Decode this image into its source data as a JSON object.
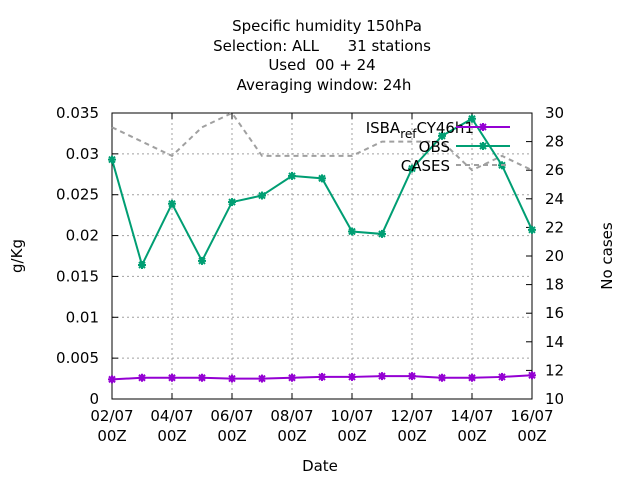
{
  "chart_data": {
    "type": "line",
    "title_lines": [
      "Specific humidity 150hPa",
      "Selection: ALL      31 stations",
      "Used  00 + 24",
      "Averaging window: 24h"
    ],
    "xlabel": "Date",
    "ylabel": "g/Kg",
    "y2label": "No cases",
    "x": [
      0,
      1,
      2,
      3,
      4,
      5,
      6,
      7,
      8,
      9,
      10,
      11,
      12,
      13,
      14
    ],
    "xlim": [
      0,
      14
    ],
    "x_ticks": [
      {
        "x": 0,
        "line1": "02/07",
        "line2": "00Z"
      },
      {
        "x": 2,
        "line1": "04/07",
        "line2": "00Z"
      },
      {
        "x": 4,
        "line1": "06/07",
        "line2": "00Z"
      },
      {
        "x": 6,
        "line1": "08/07",
        "line2": "00Z"
      },
      {
        "x": 8,
        "line1": "10/07",
        "line2": "00Z"
      },
      {
        "x": 10,
        "line1": "12/07",
        "line2": "00Z"
      },
      {
        "x": 12,
        "line1": "14/07",
        "line2": "00Z"
      },
      {
        "x": 14,
        "line1": "16/07",
        "line2": "00Z"
      }
    ],
    "ylim": [
      0,
      0.035
    ],
    "y_ticks": [
      {
        "v": 0,
        "label": "0"
      },
      {
        "v": 0.005,
        "label": "0.005"
      },
      {
        "v": 0.01,
        "label": "0.01"
      },
      {
        "v": 0.015,
        "label": "0.015"
      },
      {
        "v": 0.02,
        "label": "0.02"
      },
      {
        "v": 0.025,
        "label": "0.025"
      },
      {
        "v": 0.03,
        "label": "0.03"
      },
      {
        "v": 0.035,
        "label": "0.035"
      }
    ],
    "y2lim": [
      10,
      30
    ],
    "y2_ticks": [
      {
        "v": 10,
        "label": "10"
      },
      {
        "v": 12,
        "label": "12"
      },
      {
        "v": 14,
        "label": "14"
      },
      {
        "v": 16,
        "label": "16"
      },
      {
        "v": 18,
        "label": "18"
      },
      {
        "v": 20,
        "label": "20"
      },
      {
        "v": 22,
        "label": "22"
      },
      {
        "v": 24,
        "label": "24"
      },
      {
        "v": 26,
        "label": "26"
      },
      {
        "v": 28,
        "label": "28"
      },
      {
        "v": 30,
        "label": "30"
      }
    ],
    "grid": true,
    "legend_position": "top-right",
    "series": [
      {
        "name": "ISBA_ref_CY46h1",
        "legend_main": "ISBA",
        "legend_sub1": "ref",
        "legend_sub2": "C",
        "legend_tail": "Y46h1",
        "axis": "y1",
        "color": "#9400d3",
        "marker": "star",
        "values": [
          0.0024,
          0.0026,
          0.0026,
          0.0026,
          0.0025,
          0.0025,
          0.0026,
          0.0027,
          0.0027,
          0.0028,
          0.0028,
          0.0026,
          0.0026,
          0.0027,
          0.0029
        ]
      },
      {
        "name": "OBS",
        "axis": "y1",
        "color": "#009e73",
        "marker": "star",
        "values": [
          0.0293,
          0.0164,
          0.0239,
          0.0169,
          0.0241,
          0.0249,
          0.0273,
          0.027,
          0.0205,
          0.0202,
          0.0282,
          0.0322,
          0.0343,
          0.0286,
          0.0207
        ]
      },
      {
        "name": "CASES",
        "axis": "y2",
        "color": "#a0a0a0",
        "marker": "none",
        "dashed": true,
        "values": [
          29,
          28,
          27,
          29,
          30,
          27,
          27,
          27,
          27,
          28,
          28,
          28,
          26,
          27,
          26
        ]
      }
    ]
  }
}
